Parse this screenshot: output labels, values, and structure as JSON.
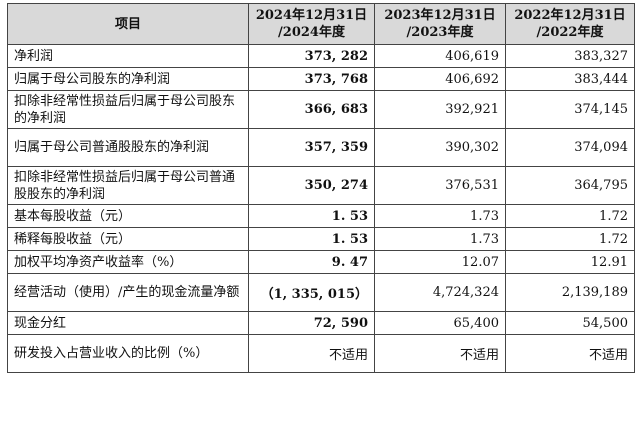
{
  "table": {
    "headers": [
      {
        "line1": "项目",
        "line2": ""
      },
      {
        "line1": "2024年12月31日",
        "line2": "/2024年度"
      },
      {
        "line1": "2023年12月31日",
        "line2": "/2023年度"
      },
      {
        "line1": "2022年12月31日",
        "line2": "/2022年度"
      }
    ],
    "rows": [
      {
        "label": "净利润",
        "y2024": "373, 282",
        "y2023": "406,619",
        "y2022": "383,327"
      },
      {
        "label": "归属于母公司股东的净利润",
        "y2024": "373, 768",
        "y2023": "406,692",
        "y2022": "383,444"
      },
      {
        "label": "扣除非经常性损益后归属于母公司股东的净利润",
        "y2024": "366, 683",
        "y2023": "392,921",
        "y2022": "374,145"
      },
      {
        "label": "归属于母公司普通股股东的净利润",
        "y2024": "357, 359",
        "y2023": "390,302",
        "y2022": "374,094"
      },
      {
        "label": "扣除非经常性损益后归属于母公司普通股股东的净利润",
        "y2024": "350, 274",
        "y2023": "376,531",
        "y2022": "364,795"
      },
      {
        "label": "基本每股收益（元）",
        "y2024": "1. 53",
        "y2023": "1.73",
        "y2022": "1.72"
      },
      {
        "label": "稀释每股收益（元）",
        "y2024": "1. 53",
        "y2023": "1.73",
        "y2022": "1.72"
      },
      {
        "label": "加权平均净资产收益率（%）",
        "y2024": "9. 47",
        "y2023": "12.07",
        "y2022": "12.91"
      },
      {
        "label": "经营活动（使用）/产生的现金流量净额",
        "y2024": "（1, 335, 015）",
        "y2023": "4,724,324",
        "y2022": "2,139,189"
      },
      {
        "label": "现金分红",
        "y2024": "72, 590",
        "y2023": "65,400",
        "y2022": "54,500"
      },
      {
        "label": "研发投入占营业收入的比例（%）",
        "y2024": "不适用",
        "y2023": "不适用",
        "y2022": "不适用"
      }
    ]
  }
}
